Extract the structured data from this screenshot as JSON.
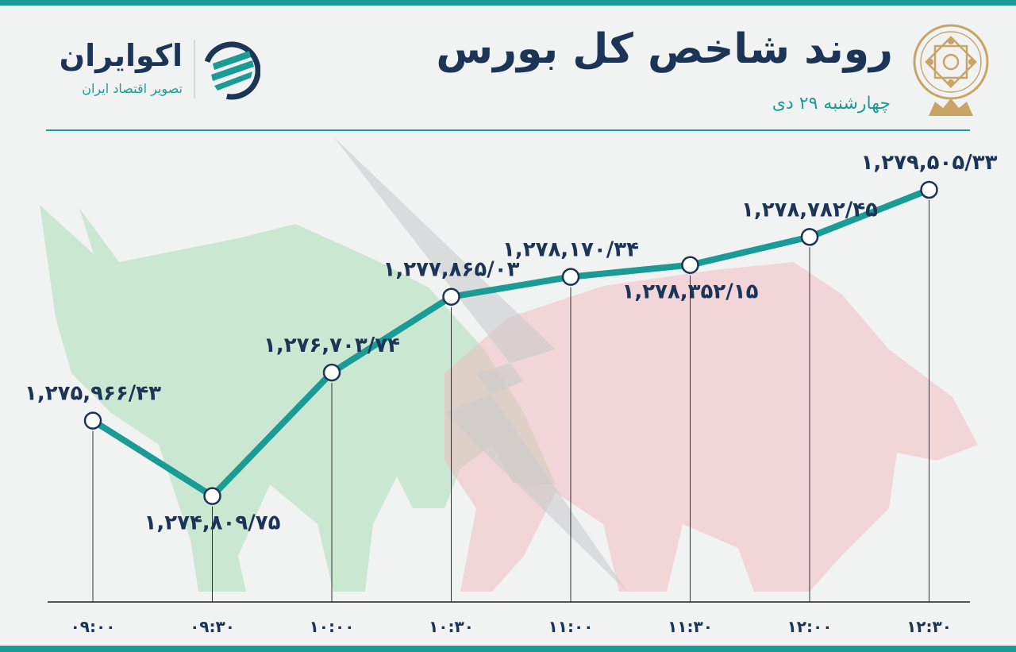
{
  "header": {
    "title": "روند شاخص کل بورس",
    "date": "چهارشنبه ۲۹ دی"
  },
  "brand": {
    "name": "اکوایران",
    "tagline": "تصویر اقتصاد ایران"
  },
  "colors": {
    "accent": "#1a9b96",
    "title": "#1c3557",
    "label": "#1c3557",
    "bull": "#a9dfb4",
    "bear": "#f2b7bd",
    "seal": "#c8a567",
    "background": "#f1f3f3"
  },
  "icons": [
    "seal-logo-icon",
    "ecoiran-logo-icon",
    "bull-silhouette",
    "bear-silhouette"
  ],
  "chart_data": {
    "type": "line",
    "x": [
      "۰۹:۰۰",
      "۰۹:۳۰",
      "۱۰:۰۰",
      "۱۰:۳۰",
      "۱۱:۰۰",
      "۱۱:۳۰",
      "۱۲:۰۰",
      "۱۲:۳۰"
    ],
    "values": [
      1275966.43,
      1274809.75,
      1276703.74,
      1277865.03,
      1278170.34,
      1278352.15,
      1278782.45,
      1279505.33
    ],
    "data_labels": [
      "۱,۲۷۵,۹۶۶/۴۳",
      "۱,۲۷۴,۸۰۹/۷۵",
      "۱,۲۷۶,۷۰۳/۷۴",
      "۱,۲۷۷,۸۶۵/۰۳",
      "۱,۲۷۸,۱۷۰/۳۴",
      "۱,۲۷۸,۳۵۲/۱۵",
      "۱,۲۷۸,۷۸۲/۴۵",
      "۱,۲۷۹,۵۰۵/۳۳"
    ],
    "label_position": [
      "above",
      "below",
      "above",
      "above",
      "above",
      "below",
      "above",
      "above"
    ],
    "title": "روند شاخص کل بورس",
    "xlabel": "",
    "ylabel": "",
    "ylim": [
      1273600,
      1279700
    ],
    "grid": false,
    "legend": "none"
  }
}
